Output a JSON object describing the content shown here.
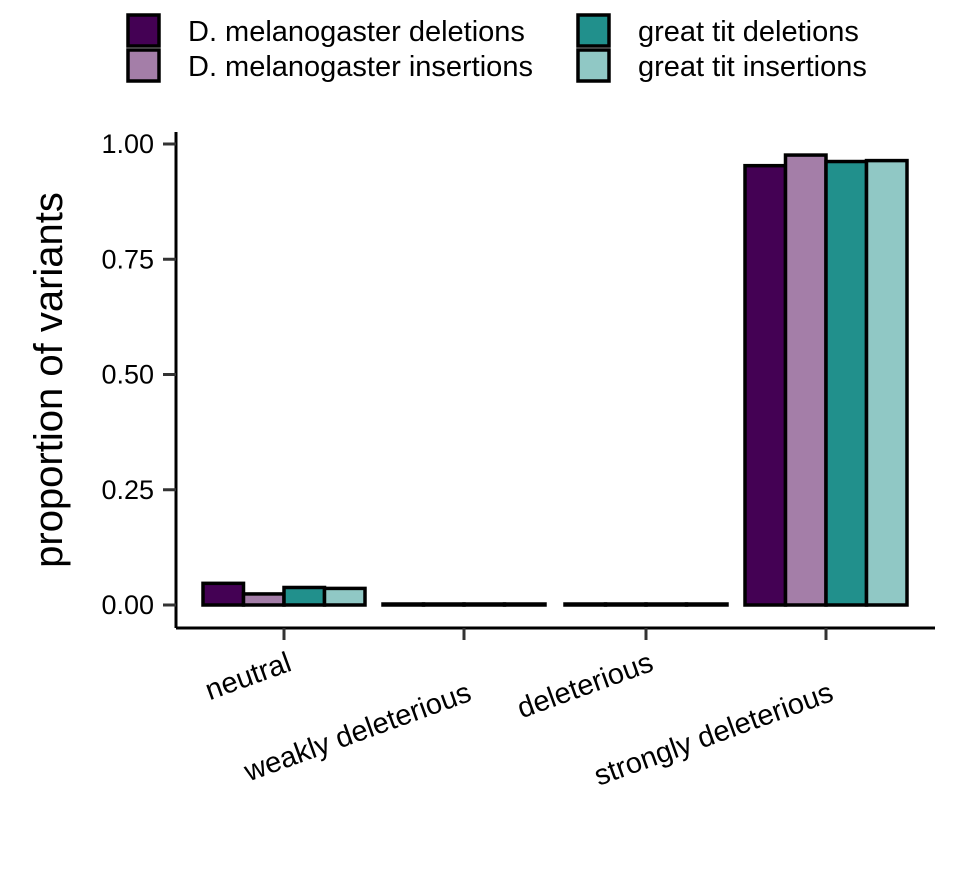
{
  "chart_data": {
    "type": "bar",
    "title": "",
    "xlabel": "",
    "ylabel": "proportion of variants",
    "categories": [
      "neutral",
      "weakly deleterious",
      "deleterious",
      "strongly deleterious"
    ],
    "series": [
      {
        "name": "D. melanogaster deletions",
        "color": "#440154",
        "values": [
          0.047,
          0.0,
          0.0,
          0.953
        ]
      },
      {
        "name": "D. melanogaster insertions",
        "color": "#A47EA8",
        "values": [
          0.024,
          0.0,
          0.0,
          0.976
        ]
      },
      {
        "name": "great tit deletions",
        "color": "#21908C",
        "values": [
          0.038,
          0.0,
          0.0,
          0.962
        ]
      },
      {
        "name": "great tit insertions",
        "color": "#90C8C5",
        "values": [
          0.036,
          0.0,
          0.0,
          0.964
        ]
      }
    ],
    "ylim": [
      0,
      1.0
    ],
    "yticks": [
      0.0,
      0.25,
      0.5,
      0.75,
      1.0
    ],
    "ytick_labels": [
      "0.00",
      "0.25",
      "0.50",
      "0.75",
      "1.00"
    ],
    "legend_position": "top",
    "grid": false,
    "bar_outline_color": "#000000"
  }
}
